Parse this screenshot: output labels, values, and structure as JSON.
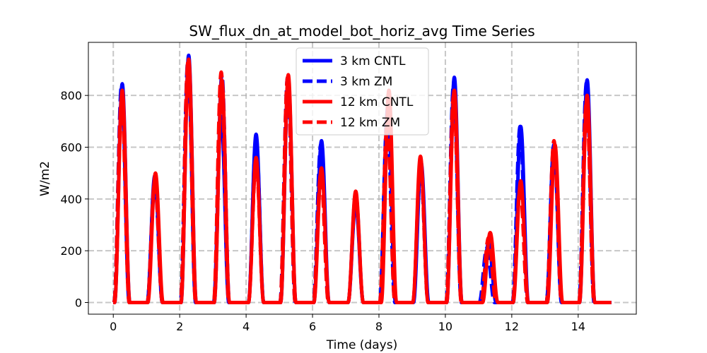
{
  "chart_data": {
    "type": "line",
    "title": "SW_flux_dn_at_model_bot_horiz_avg Time Series",
    "xlabel": "Time (days)",
    "ylabel": "W/m2",
    "xlim": [
      -0.75,
      15.75
    ],
    "ylim": [
      -45,
      1005
    ],
    "xticks": [
      0,
      2,
      4,
      6,
      8,
      10,
      12,
      14
    ],
    "yticks": [
      0,
      200,
      400,
      600,
      800
    ],
    "grid": true,
    "grid_style": "dashed",
    "legend_position": "upper center",
    "series": [
      {
        "name": "3 km CNTL",
        "color": "#0000ff",
        "style": "solid",
        "peaks": [
          [
            0.27,
            845
          ],
          [
            1.25,
            490
          ],
          [
            2.27,
            955
          ],
          [
            3.25,
            720
          ],
          [
            4.3,
            650
          ],
          [
            5.27,
            860
          ],
          [
            6.27,
            625
          ],
          [
            7.3,
            380
          ],
          [
            8.27,
            760
          ],
          [
            9.27,
            540
          ],
          [
            10.27,
            870
          ],
          [
            11.3,
            230
          ],
          [
            12.27,
            680
          ],
          [
            13.27,
            610
          ],
          [
            14.27,
            860
          ]
        ]
      },
      {
        "name": "3 km ZM",
        "color": "#0000ff",
        "style": "dashed",
        "peaks": [
          [
            0.25,
            840
          ],
          [
            1.25,
            460
          ],
          [
            2.25,
            940
          ],
          [
            3.27,
            880
          ],
          [
            4.3,
            640
          ],
          [
            5.25,
            870
          ],
          [
            6.25,
            610
          ],
          [
            7.3,
            420
          ],
          [
            8.25,
            720
          ],
          [
            9.25,
            530
          ],
          [
            10.25,
            850
          ],
          [
            11.25,
            210
          ],
          [
            12.25,
            680
          ],
          [
            13.27,
            620
          ],
          [
            14.25,
            850
          ]
        ]
      },
      {
        "name": "12 km CNTL",
        "color": "#ff0000",
        "style": "solid",
        "peaks": [
          [
            0.27,
            820
          ],
          [
            1.27,
            500
          ],
          [
            2.27,
            940
          ],
          [
            3.27,
            860
          ],
          [
            4.3,
            560
          ],
          [
            5.27,
            880
          ],
          [
            6.27,
            520
          ],
          [
            7.3,
            430
          ],
          [
            8.3,
            820
          ],
          [
            9.25,
            565
          ],
          [
            10.27,
            820
          ],
          [
            11.35,
            270
          ],
          [
            12.27,
            470
          ],
          [
            13.3,
            610
          ],
          [
            14.27,
            800
          ]
        ]
      },
      {
        "name": "12 km ZM",
        "color": "#ff0000",
        "style": "dashed",
        "peaks": [
          [
            0.25,
            790
          ],
          [
            1.25,
            470
          ],
          [
            2.25,
            930
          ],
          [
            3.25,
            890
          ],
          [
            4.3,
            540
          ],
          [
            5.25,
            870
          ],
          [
            6.25,
            500
          ],
          [
            7.3,
            400
          ],
          [
            8.25,
            700
          ],
          [
            9.25,
            540
          ],
          [
            10.25,
            800
          ],
          [
            11.3,
            250
          ],
          [
            12.25,
            440
          ],
          [
            13.27,
            625
          ],
          [
            14.25,
            780
          ]
        ]
      }
    ]
  }
}
